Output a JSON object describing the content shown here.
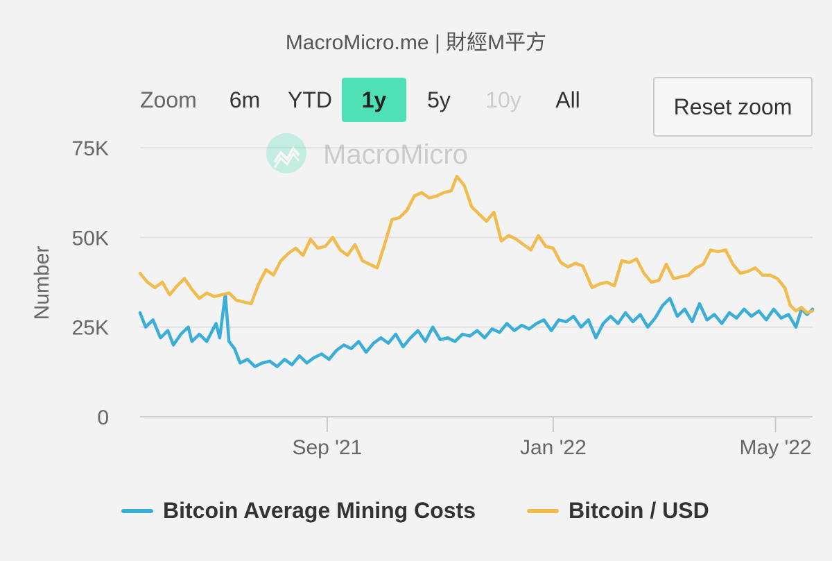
{
  "header": {
    "title": "MacroMicro.me | 財經M平方"
  },
  "zoom": {
    "label": "Zoom",
    "buttons": [
      {
        "label": "6m",
        "state": "normal"
      },
      {
        "label": "YTD",
        "state": "normal"
      },
      {
        "label": "1y",
        "state": "active"
      },
      {
        "label": "5y",
        "state": "normal"
      },
      {
        "label": "10y",
        "state": "disabled"
      },
      {
        "label": "All",
        "state": "normal"
      }
    ]
  },
  "reset_label": "Reset zoom",
  "watermark": {
    "text": "MacroMicro",
    "icon": "chart-logo-icon"
  },
  "colors": {
    "mining": "#3aaed8",
    "btc": "#f2bb4d",
    "active": "#4fe0b6"
  },
  "chart_data": {
    "type": "line",
    "ylabel": "Number",
    "ylim": [
      0,
      75000
    ],
    "yticks": [
      {
        "value": 0,
        "label": "0"
      },
      {
        "value": 25000,
        "label": "25K"
      },
      {
        "value": 50000,
        "label": "50K"
      },
      {
        "value": 75000,
        "label": "75K"
      }
    ],
    "xlim": [
      "2021-05-23",
      "2022-05-21"
    ],
    "xticks": [
      {
        "date": "2021-09-01",
        "label": "Sep '21"
      },
      {
        "date": "2022-01-01",
        "label": "Jan '22"
      },
      {
        "date": "2022-05-01",
        "label": "May '22"
      }
    ],
    "grid": true,
    "legend_position": "bottom",
    "series": [
      {
        "name": "Bitcoin Average Mining Costs",
        "color": "#3aaed8",
        "points": [
          [
            "2021-05-23",
            29000
          ],
          [
            "2021-05-26",
            25000
          ],
          [
            "2021-05-30",
            27000
          ],
          [
            "2021-06-03",
            22000
          ],
          [
            "2021-06-07",
            24000
          ],
          [
            "2021-06-10",
            20000
          ],
          [
            "2021-06-14",
            23000
          ],
          [
            "2021-06-18",
            25000
          ],
          [
            "2021-06-20",
            21000
          ],
          [
            "2021-06-24",
            23000
          ],
          [
            "2021-06-28",
            21000
          ],
          [
            "2021-07-01",
            24000
          ],
          [
            "2021-07-03",
            26000
          ],
          [
            "2021-07-05",
            22000
          ],
          [
            "2021-07-08",
            34000
          ],
          [
            "2021-07-10",
            21000
          ],
          [
            "2021-07-13",
            19000
          ],
          [
            "2021-07-16",
            15000
          ],
          [
            "2021-07-20",
            16000
          ],
          [
            "2021-07-24",
            14000
          ],
          [
            "2021-07-28",
            15000
          ],
          [
            "2021-08-01",
            15500
          ],
          [
            "2021-08-05",
            14000
          ],
          [
            "2021-08-09",
            16000
          ],
          [
            "2021-08-13",
            14500
          ],
          [
            "2021-08-17",
            17000
          ],
          [
            "2021-08-21",
            15000
          ],
          [
            "2021-08-25",
            16500
          ],
          [
            "2021-08-29",
            17500
          ],
          [
            "2021-09-02",
            16000
          ],
          [
            "2021-09-06",
            18500
          ],
          [
            "2021-09-10",
            20000
          ],
          [
            "2021-09-14",
            19000
          ],
          [
            "2021-09-18",
            21000
          ],
          [
            "2021-09-22",
            18000
          ],
          [
            "2021-09-26",
            20500
          ],
          [
            "2021-09-30",
            22000
          ],
          [
            "2021-10-04",
            20500
          ],
          [
            "2021-10-08",
            23000
          ],
          [
            "2021-10-12",
            19500
          ],
          [
            "2021-10-16",
            22000
          ],
          [
            "2021-10-20",
            24000
          ],
          [
            "2021-10-24",
            21000
          ],
          [
            "2021-10-28",
            25000
          ],
          [
            "2021-11-01",
            21500
          ],
          [
            "2021-11-05",
            22000
          ],
          [
            "2021-11-09",
            21000
          ],
          [
            "2021-11-13",
            23000
          ],
          [
            "2021-11-17",
            22500
          ],
          [
            "2021-11-21",
            24000
          ],
          [
            "2021-11-25",
            22000
          ],
          [
            "2021-11-29",
            24500
          ],
          [
            "2021-12-03",
            23500
          ],
          [
            "2021-12-07",
            26000
          ],
          [
            "2021-12-11",
            24000
          ],
          [
            "2021-12-15",
            25500
          ],
          [
            "2021-12-19",
            24500
          ],
          [
            "2021-12-23",
            26000
          ],
          [
            "2021-12-27",
            27000
          ],
          [
            "2021-12-31",
            24000
          ],
          [
            "2022-01-04",
            27000
          ],
          [
            "2022-01-08",
            26500
          ],
          [
            "2022-01-12",
            28000
          ],
          [
            "2022-01-16",
            25000
          ],
          [
            "2022-01-20",
            27000
          ],
          [
            "2022-01-24",
            22000
          ],
          [
            "2022-01-28",
            26000
          ],
          [
            "2022-02-01",
            28000
          ],
          [
            "2022-02-05",
            26000
          ],
          [
            "2022-02-09",
            29000
          ],
          [
            "2022-02-13",
            26500
          ],
          [
            "2022-02-17",
            28500
          ],
          [
            "2022-02-21",
            25000
          ],
          [
            "2022-02-25",
            27500
          ],
          [
            "2022-03-01",
            31000
          ],
          [
            "2022-03-05",
            33000
          ],
          [
            "2022-03-09",
            28000
          ],
          [
            "2022-03-13",
            30000
          ],
          [
            "2022-03-17",
            26500
          ],
          [
            "2022-03-21",
            31500
          ],
          [
            "2022-03-25",
            27000
          ],
          [
            "2022-03-29",
            28500
          ],
          [
            "2022-04-02",
            26000
          ],
          [
            "2022-04-06",
            29000
          ],
          [
            "2022-04-10",
            27500
          ],
          [
            "2022-04-14",
            30000
          ],
          [
            "2022-04-18",
            28000
          ],
          [
            "2022-04-22",
            29500
          ],
          [
            "2022-04-26",
            27000
          ],
          [
            "2022-04-30",
            30000
          ],
          [
            "2022-05-04",
            27500
          ],
          [
            "2022-05-08",
            28500
          ],
          [
            "2022-05-12",
            25000
          ],
          [
            "2022-05-15",
            30000
          ],
          [
            "2022-05-18",
            28500
          ],
          [
            "2022-05-21",
            30000
          ]
        ]
      },
      {
        "name": "Bitcoin / USD",
        "color": "#f2bb4d",
        "points": [
          [
            "2021-05-23",
            40000
          ],
          [
            "2021-05-27",
            37500
          ],
          [
            "2021-05-31",
            36000
          ],
          [
            "2021-06-04",
            37500
          ],
          [
            "2021-06-08",
            34000
          ],
          [
            "2021-06-12",
            36500
          ],
          [
            "2021-06-16",
            38500
          ],
          [
            "2021-06-20",
            35500
          ],
          [
            "2021-06-24",
            33000
          ],
          [
            "2021-06-28",
            34500
          ],
          [
            "2021-07-02",
            33500
          ],
          [
            "2021-07-06",
            34000
          ],
          [
            "2021-07-10",
            34500
          ],
          [
            "2021-07-14",
            32500
          ],
          [
            "2021-07-18",
            32000
          ],
          [
            "2021-07-22",
            31500
          ],
          [
            "2021-07-26",
            37000
          ],
          [
            "2021-07-30",
            41000
          ],
          [
            "2021-08-03",
            39500
          ],
          [
            "2021-08-07",
            43500
          ],
          [
            "2021-08-11",
            45500
          ],
          [
            "2021-08-15",
            47000
          ],
          [
            "2021-08-19",
            45000
          ],
          [
            "2021-08-23",
            49500
          ],
          [
            "2021-08-27",
            47000
          ],
          [
            "2021-08-31",
            47500
          ],
          [
            "2021-09-04",
            50000
          ],
          [
            "2021-09-08",
            46500
          ],
          [
            "2021-09-12",
            45000
          ],
          [
            "2021-09-16",
            48000
          ],
          [
            "2021-09-20",
            43500
          ],
          [
            "2021-09-24",
            42500
          ],
          [
            "2021-09-28",
            41500
          ],
          [
            "2021-10-02",
            48000
          ],
          [
            "2021-10-06",
            55000
          ],
          [
            "2021-10-10",
            55500
          ],
          [
            "2021-10-14",
            57500
          ],
          [
            "2021-10-18",
            61500
          ],
          [
            "2021-10-22",
            62500
          ],
          [
            "2021-10-26",
            61000
          ],
          [
            "2021-10-30",
            61500
          ],
          [
            "2021-11-03",
            62500
          ],
          [
            "2021-11-07",
            63000
          ],
          [
            "2021-11-10",
            67000
          ],
          [
            "2021-11-14",
            64500
          ],
          [
            "2021-11-18",
            58500
          ],
          [
            "2021-11-22",
            56500
          ],
          [
            "2021-11-26",
            54500
          ],
          [
            "2021-11-30",
            57000
          ],
          [
            "2021-12-04",
            49000
          ],
          [
            "2021-12-08",
            50500
          ],
          [
            "2021-12-12",
            49500
          ],
          [
            "2021-12-16",
            48000
          ],
          [
            "2021-12-20",
            46500
          ],
          [
            "2021-12-24",
            50500
          ],
          [
            "2021-12-28",
            47500
          ],
          [
            "2022-01-01",
            47000
          ],
          [
            "2022-01-05",
            43000
          ],
          [
            "2022-01-09",
            41800
          ],
          [
            "2022-01-13",
            42800
          ],
          [
            "2022-01-17",
            42000
          ],
          [
            "2022-01-22",
            36000
          ],
          [
            "2022-01-26",
            37000
          ],
          [
            "2022-01-30",
            37500
          ],
          [
            "2022-02-03",
            36500
          ],
          [
            "2022-02-07",
            43500
          ],
          [
            "2022-02-11",
            43000
          ],
          [
            "2022-02-15",
            44000
          ],
          [
            "2022-02-19",
            40000
          ],
          [
            "2022-02-23",
            37500
          ],
          [
            "2022-02-27",
            38000
          ],
          [
            "2022-03-03",
            42500
          ],
          [
            "2022-03-07",
            38500
          ],
          [
            "2022-03-11",
            39000
          ],
          [
            "2022-03-15",
            39500
          ],
          [
            "2022-03-19",
            41500
          ],
          [
            "2022-03-23",
            42500
          ],
          [
            "2022-03-27",
            46500
          ],
          [
            "2022-03-31",
            46000
          ],
          [
            "2022-04-04",
            46500
          ],
          [
            "2022-04-08",
            42500
          ],
          [
            "2022-04-12",
            40000
          ],
          [
            "2022-04-16",
            40500
          ],
          [
            "2022-04-20",
            41500
          ],
          [
            "2022-04-24",
            39500
          ],
          [
            "2022-04-28",
            39500
          ],
          [
            "2022-05-02",
            38500
          ],
          [
            "2022-05-06",
            36000
          ],
          [
            "2022-05-09",
            31000
          ],
          [
            "2022-05-12",
            29500
          ],
          [
            "2022-05-15",
            30500
          ],
          [
            "2022-05-18",
            29000
          ],
          [
            "2022-05-21",
            29500
          ]
        ]
      }
    ]
  }
}
